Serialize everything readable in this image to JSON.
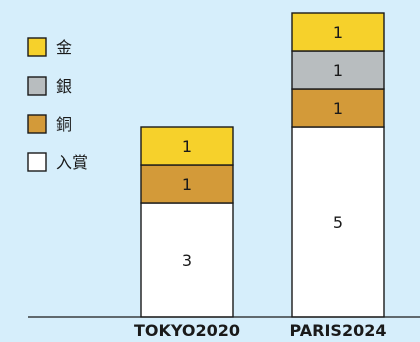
{
  "colors": {
    "background": "#d6eefb",
    "gold": "#f6d12b",
    "silver": "#b8bdbf",
    "bronze": "#d39a39",
    "entry": "#ffffff",
    "outline": "#1a1a1a"
  },
  "chart_data": {
    "type": "bar",
    "stacked": true,
    "title": "",
    "xlabel": "",
    "ylabel": "",
    "grid": false,
    "legend_position": "top-left",
    "categories": [
      "TOKYO2020",
      "PARIS2024"
    ],
    "series": [
      {
        "name": "入賞",
        "color_key": "entry",
        "values": [
          3,
          5
        ]
      },
      {
        "name": "銅",
        "color_key": "bronze",
        "values": [
          1,
          1
        ]
      },
      {
        "name": "銀",
        "color_key": "silver",
        "values": [
          0,
          1
        ]
      },
      {
        "name": "金",
        "color_key": "gold",
        "values": [
          1,
          1
        ]
      }
    ],
    "legend_order": [
      "金",
      "銀",
      "銅",
      "入賞"
    ],
    "ylim": [
      0,
      8
    ]
  }
}
